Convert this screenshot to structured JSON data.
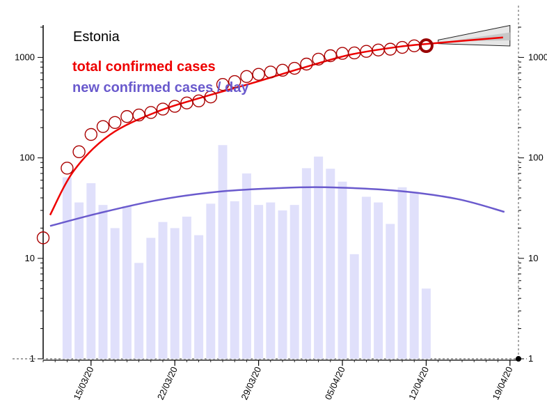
{
  "chart_data": {
    "type": "bar+line+scatter",
    "title": "Estonia",
    "y_scale": "log",
    "ylim": [
      1,
      2000
    ],
    "y_ticks": [
      "1",
      "10",
      "100",
      "1000"
    ],
    "x_ticks": [
      "15/03/20",
      "22/03/20",
      "29/03/20",
      "05/04/20",
      "12/04/20",
      "19/04/20"
    ],
    "legend": [
      "total confirmed cases",
      "new confirmed cases / day"
    ],
    "colors": {
      "total": "#ee0000",
      "new": "#6a5acd",
      "bars": "#e0e0fb",
      "band": "#c8c8c8",
      "last_point": "#990000"
    },
    "days": [
      "11/03/20",
      "12/03/20",
      "13/03/20",
      "14/03/20",
      "15/03/20",
      "16/03/20",
      "17/03/20",
      "18/03/20",
      "19/03/20",
      "20/03/20",
      "21/03/20",
      "22/03/20",
      "23/03/20",
      "24/03/20",
      "25/03/20",
      "26/03/20",
      "27/03/20",
      "28/03/20",
      "29/03/20",
      "30/03/20",
      "31/03/20",
      "01/04/20",
      "02/04/20",
      "03/04/20",
      "04/04/20",
      "05/04/20",
      "06/04/20",
      "07/04/20",
      "08/04/20",
      "09/04/20",
      "10/04/20",
      "11/04/20",
      "12/04/20"
    ],
    "total_confirmed": [
      16,
      79,
      115,
      171,
      205,
      225,
      258,
      267,
      283,
      306,
      326,
      352,
      369,
      404,
      538,
      575,
      645,
      679,
      715,
      745,
      779,
      858,
      961,
      1039,
      1097,
      1108,
      1149,
      1185,
      1207,
      1258,
      1304,
      1309
    ],
    "total_confirmed_days": [
      "11/03/20",
      "13/03/20",
      "14/03/20",
      "15/03/20",
      "16/03/20",
      "17/03/20",
      "18/03/20",
      "19/03/20",
      "20/03/20",
      "21/03/20",
      "22/03/20",
      "23/03/20",
      "24/03/20",
      "25/03/20",
      "26/03/20",
      "27/03/20",
      "28/03/20",
      "29/03/20",
      "30/03/20",
      "31/03/20",
      "01/04/20",
      "02/04/20",
      "03/04/20",
      "04/04/20",
      "05/04/20",
      "06/04/20",
      "07/04/20",
      "08/04/20",
      "09/04/20",
      "10/04/20",
      "11/04/20",
      "12/04/20"
    ],
    "new_per_day_days": [
      "13/03/20",
      "14/03/20",
      "15/03/20",
      "16/03/20",
      "17/03/20",
      "18/03/20",
      "19/03/20",
      "20/03/20",
      "21/03/20",
      "22/03/20",
      "23/03/20",
      "24/03/20",
      "25/03/20",
      "26/03/20",
      "27/03/20",
      "28/03/20",
      "29/03/20",
      "30/03/20",
      "31/03/20",
      "01/04/20",
      "02/04/20",
      "03/04/20",
      "04/04/20",
      "05/04/20",
      "06/04/20",
      "07/04/20",
      "08/04/20",
      "09/04/20",
      "10/04/20",
      "11/04/20",
      "12/04/20"
    ],
    "new_per_day": [
      64,
      36,
      56,
      34,
      20,
      33,
      9,
      16,
      23,
      20,
      26,
      17,
      35,
      134,
      37,
      70,
      34,
      36,
      30,
      34,
      79,
      103,
      78,
      58,
      11,
      41,
      36,
      22,
      51,
      46,
      5
    ],
    "total_fit_days": [
      "11/03/20",
      "13/03/20",
      "16/03/20",
      "20/03/20",
      "24/03/20",
      "28/03/20",
      "01/04/20",
      "05/04/20",
      "09/04/20",
      "12/04/20",
      "19/04/20"
    ],
    "total_fit": [
      27,
      75,
      170,
      290,
      410,
      560,
      780,
      1060,
      1270,
      1380,
      1580
    ],
    "new_fit_days": [
      "11/03/20",
      "15/03/20",
      "20/03/20",
      "25/03/20",
      "30/03/20",
      "03/04/20",
      "09/04/20",
      "14/04/20",
      "19/04/20"
    ],
    "new_fit": [
      21,
      28,
      38,
      46,
      50,
      51,
      47,
      39,
      29
    ],
    "projection_days": [
      "13/04/20",
      "19/04/20"
    ],
    "projection_low": [
      1370,
      1300
    ],
    "projection_high": [
      1490,
      2080
    ]
  }
}
